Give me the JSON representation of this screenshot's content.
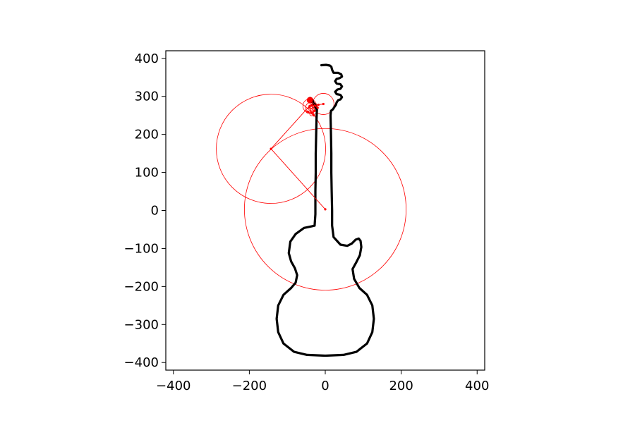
{
  "chart_data": {
    "type": "line",
    "title": "",
    "xlabel": "",
    "ylabel": "",
    "xlim": [
      -420,
      420
    ],
    "ylim": [
      -420,
      420
    ],
    "grid": false,
    "aspect": "equal",
    "xticks": [
      -400,
      -200,
      0,
      200,
      400
    ],
    "yticks": [
      -400,
      -300,
      -200,
      -100,
      0,
      100,
      200,
      300,
      400
    ],
    "xtick_labels": [
      "−400",
      "−200",
      "0",
      "200",
      "400"
    ],
    "ytick_labels": [
      "−400",
      "−300",
      "−200",
      "−100",
      "0",
      "100",
      "200",
      "300",
      "400"
    ],
    "series": [
      {
        "name": "guitar-outline",
        "color": "#000000",
        "points": [
          [
            -10,
            382
          ],
          [
            2,
            383
          ],
          [
            12,
            381
          ],
          [
            16,
            378
          ],
          [
            18,
            370
          ],
          [
            22,
            362
          ],
          [
            34,
            362
          ],
          [
            42,
            358
          ],
          [
            44,
            352
          ],
          [
            38,
            348
          ],
          [
            30,
            346
          ],
          [
            26,
            340
          ],
          [
            30,
            334
          ],
          [
            40,
            332
          ],
          [
            44,
            326
          ],
          [
            40,
            320
          ],
          [
            32,
            318
          ],
          [
            26,
            312
          ],
          [
            30,
            306
          ],
          [
            40,
            304
          ],
          [
            44,
            298
          ],
          [
            40,
            292
          ],
          [
            34,
            290
          ],
          [
            30,
            284
          ],
          [
            28,
            278
          ],
          [
            24,
            272
          ],
          [
            20,
            266
          ],
          [
            15,
            262
          ],
          [
            14,
            250
          ],
          [
            15,
            200
          ],
          [
            16,
            150
          ],
          [
            16,
            100
          ],
          [
            17,
            50
          ],
          [
            18,
            0
          ],
          [
            18,
            -40
          ],
          [
            22,
            -70
          ],
          [
            40,
            -90
          ],
          [
            58,
            -93
          ],
          [
            70,
            -87
          ],
          [
            80,
            -77
          ],
          [
            88,
            -74
          ],
          [
            93,
            -80
          ],
          [
            95,
            -96
          ],
          [
            91,
            -118
          ],
          [
            82,
            -136
          ],
          [
            72,
            -154
          ],
          [
            76,
            -180
          ],
          [
            90,
            -204
          ],
          [
            110,
            -222
          ],
          [
            124,
            -250
          ],
          [
            128,
            -285
          ],
          [
            124,
            -320
          ],
          [
            110,
            -350
          ],
          [
            82,
            -372
          ],
          [
            48,
            -380
          ],
          [
            0,
            -382
          ],
          [
            -48,
            -380
          ],
          [
            -82,
            -372
          ],
          [
            -110,
            -350
          ],
          [
            -124,
            -320
          ],
          [
            -128,
            -285
          ],
          [
            -124,
            -250
          ],
          [
            -110,
            -222
          ],
          [
            -90,
            -204
          ],
          [
            -78,
            -190
          ],
          [
            -74,
            -170
          ],
          [
            -80,
            -152
          ],
          [
            -90,
            -134
          ],
          [
            -96,
            -112
          ],
          [
            -92,
            -82
          ],
          [
            -78,
            -62
          ],
          [
            -56,
            -46
          ],
          [
            -36,
            -42
          ],
          [
            -28,
            -40
          ],
          [
            -26,
            -10
          ],
          [
            -26,
            50
          ],
          [
            -25,
            100
          ],
          [
            -25,
            150
          ],
          [
            -24,
            200
          ],
          [
            -23,
            240
          ],
          [
            -22,
            265
          ],
          [
            -26,
            278
          ],
          [
            -36,
            287
          ],
          [
            -42,
            291
          ],
          [
            -40,
            295
          ],
          [
            -34,
            290
          ],
          [
            -30,
            280
          ],
          [
            -24,
            268
          ]
        ]
      },
      {
        "name": "epicycle-arm",
        "color": "#ff0000",
        "points": [
          [
            0,
            3
          ],
          [
            -143,
            162
          ],
          [
            -41,
            275
          ],
          [
            -5,
            280
          ],
          [
            -18,
            278
          ],
          [
            -42,
            272
          ],
          [
            -28,
            262
          ],
          [
            -46,
            260
          ],
          [
            -30,
            250
          ],
          [
            -36,
            278
          ],
          [
            -20,
            270
          ],
          [
            -40,
            290
          ]
        ]
      }
    ],
    "circles": [
      {
        "cx": 0,
        "cy": 3,
        "r": 213
      },
      {
        "cx": -143,
        "cy": 162,
        "r": 144
      },
      {
        "cx": -41,
        "cy": 275,
        "r": 18
      },
      {
        "cx": -5,
        "cy": 280,
        "r": 28
      },
      {
        "cx": -38,
        "cy": 270,
        "r": 14
      },
      {
        "cx": -30,
        "cy": 262,
        "r": 9
      },
      {
        "cx": -44,
        "cy": 262,
        "r": 7
      },
      {
        "cx": -26,
        "cy": 274,
        "r": 6
      },
      {
        "cx": -40,
        "cy": 290,
        "r": 8
      },
      {
        "cx": -36,
        "cy": 254,
        "r": 5
      }
    ],
    "circle_color": "#ff0000"
  }
}
